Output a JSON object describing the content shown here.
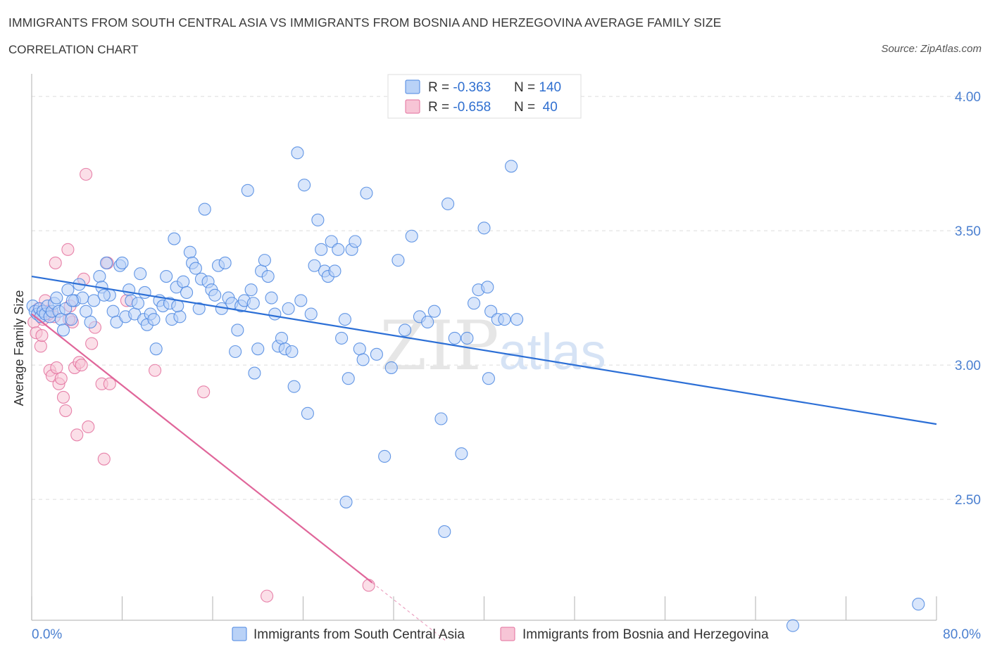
{
  "header": {
    "title": "IMMIGRANTS FROM SOUTH CENTRAL ASIA VS IMMIGRANTS FROM BOSNIA AND HERZEGOVINA AVERAGE FAMILY SIZE",
    "subtitle": "CORRELATION CHART",
    "source": "Source: ZipAtlas.com"
  },
  "watermark": "ZIPatlas",
  "colors": {
    "blue": "#4a86e0",
    "blue_fill": "#b9d2f7",
    "pink": "#e36f9c",
    "pink_fill": "#f7c5d6",
    "axis_text": "#4a7fd0"
  },
  "chart_data": {
    "type": "scatter",
    "title": "IMMIGRANTS FROM SOUTH CENTRAL ASIA VS IMMIGRANTS FROM BOSNIA AND HERZEGOVINA AVERAGE FAMILY SIZE",
    "xlabel": "",
    "ylabel": "Average Family Size",
    "xlim": [
      0,
      80
    ],
    "ylim": [
      2.05,
      4.05
    ],
    "x_tick_labels": [
      "0.0%",
      "80.0%"
    ],
    "y_ticks": [
      2.5,
      3.0,
      3.5,
      4.0
    ],
    "y_tick_labels": [
      "2.50",
      "3.00",
      "3.50",
      "4.00"
    ],
    "grid": true,
    "legend": [
      {
        "name": "Immigrants from South Central Asia",
        "r_label": "R = ",
        "r": "-0.363",
        "n_label": "N = ",
        "n": "140"
      },
      {
        "name": "Immigrants from Bosnia and Herzegovina",
        "r_label": "R = ",
        "r": "-0.658",
        "n_label": "N = ",
        "n": " 40"
      }
    ],
    "series": [
      {
        "name": "Immigrants from South Central Asia",
        "color": "blue",
        "trend": {
          "x0": 0,
          "y0": 3.33,
          "x1": 80,
          "y1": 2.78
        },
        "points": [
          [
            0.1,
            3.22
          ],
          [
            0.3,
            3.2
          ],
          [
            0.5,
            3.19
          ],
          [
            0.7,
            3.21
          ],
          [
            0.8,
            3.18
          ],
          [
            1.0,
            3.2
          ],
          [
            1.2,
            3.19
          ],
          [
            1.4,
            3.22
          ],
          [
            1.6,
            3.18
          ],
          [
            1.8,
            3.2
          ],
          [
            2.0,
            3.23
          ],
          [
            2.2,
            3.25
          ],
          [
            2.4,
            3.2
          ],
          [
            2.6,
            3.17
          ],
          [
            2.8,
            3.13
          ],
          [
            3.0,
            3.21
          ],
          [
            3.2,
            3.28
          ],
          [
            3.5,
            3.17
          ],
          [
            3.8,
            3.24
          ],
          [
            4.2,
            3.3
          ],
          [
            4.5,
            3.25
          ],
          [
            4.8,
            3.2
          ],
          [
            5.2,
            3.16
          ],
          [
            5.5,
            3.24
          ],
          [
            6.0,
            3.33
          ],
          [
            6.2,
            3.29
          ],
          [
            6.6,
            3.38
          ],
          [
            6.9,
            3.26
          ],
          [
            7.2,
            3.2
          ],
          [
            7.5,
            3.16
          ],
          [
            7.8,
            3.37
          ],
          [
            8.0,
            3.38
          ],
          [
            8.3,
            3.18
          ],
          [
            8.6,
            3.28
          ],
          [
            8.8,
            3.24
          ],
          [
            9.1,
            3.19
          ],
          [
            9.4,
            3.23
          ],
          [
            9.6,
            3.34
          ],
          [
            9.9,
            3.17
          ],
          [
            10.2,
            3.15
          ],
          [
            10.5,
            3.19
          ],
          [
            10.8,
            3.17
          ],
          [
            11.0,
            3.06
          ],
          [
            11.3,
            3.24
          ],
          [
            11.6,
            3.22
          ],
          [
            11.9,
            3.33
          ],
          [
            12.2,
            3.23
          ],
          [
            12.4,
            3.17
          ],
          [
            12.6,
            3.47
          ],
          [
            12.8,
            3.29
          ],
          [
            13.1,
            3.18
          ],
          [
            13.4,
            3.31
          ],
          [
            13.7,
            3.27
          ],
          [
            14.0,
            3.42
          ],
          [
            14.2,
            3.38
          ],
          [
            14.5,
            3.36
          ],
          [
            14.8,
            3.21
          ],
          [
            15.0,
            3.32
          ],
          [
            15.3,
            3.58
          ],
          [
            15.6,
            3.31
          ],
          [
            15.9,
            3.28
          ],
          [
            16.2,
            3.26
          ],
          [
            16.5,
            3.37
          ],
          [
            16.8,
            3.21
          ],
          [
            17.1,
            3.38
          ],
          [
            17.4,
            3.25
          ],
          [
            17.7,
            3.23
          ],
          [
            18.0,
            3.05
          ],
          [
            18.2,
            3.13
          ],
          [
            18.5,
            3.22
          ],
          [
            18.8,
            3.24
          ],
          [
            19.1,
            3.65
          ],
          [
            19.4,
            3.28
          ],
          [
            19.7,
            2.97
          ],
          [
            20.0,
            3.06
          ],
          [
            20.3,
            3.35
          ],
          [
            20.6,
            3.39
          ],
          [
            20.9,
            3.33
          ],
          [
            21.2,
            3.25
          ],
          [
            21.5,
            3.19
          ],
          [
            21.8,
            3.07
          ],
          [
            22.1,
            3.1
          ],
          [
            22.4,
            3.06
          ],
          [
            22.7,
            3.21
          ],
          [
            23.0,
            3.05
          ],
          [
            23.2,
            2.92
          ],
          [
            23.5,
            3.79
          ],
          [
            23.8,
            3.24
          ],
          [
            24.1,
            3.67
          ],
          [
            24.4,
            2.82
          ],
          [
            24.7,
            3.19
          ],
          [
            25.0,
            3.37
          ],
          [
            25.3,
            3.54
          ],
          [
            25.6,
            3.43
          ],
          [
            25.9,
            3.35
          ],
          [
            26.2,
            3.33
          ],
          [
            26.5,
            3.46
          ],
          [
            26.8,
            3.35
          ],
          [
            27.1,
            3.43
          ],
          [
            27.4,
            3.1
          ],
          [
            27.7,
            3.17
          ],
          [
            28.0,
            2.95
          ],
          [
            28.3,
            3.43
          ],
          [
            28.6,
            3.46
          ],
          [
            29.0,
            3.06
          ],
          [
            29.3,
            3.02
          ],
          [
            29.6,
            3.64
          ],
          [
            30.5,
            3.04
          ],
          [
            31.2,
            2.66
          ],
          [
            31.8,
            2.99
          ],
          [
            32.4,
            3.39
          ],
          [
            33.0,
            3.13
          ],
          [
            33.6,
            3.48
          ],
          [
            34.3,
            3.18
          ],
          [
            35.0,
            3.16
          ],
          [
            35.6,
            3.2
          ],
          [
            36.2,
            2.8
          ],
          [
            36.8,
            3.6
          ],
          [
            37.4,
            3.1
          ],
          [
            38.0,
            2.67
          ],
          [
            38.5,
            3.1
          ],
          [
            39.1,
            3.23
          ],
          [
            39.5,
            3.28
          ],
          [
            40.0,
            3.51
          ],
          [
            40.3,
            3.29
          ],
          [
            40.6,
            3.2
          ],
          [
            41.2,
            3.17
          ],
          [
            41.8,
            3.17
          ],
          [
            42.4,
            3.74
          ],
          [
            27.8,
            2.49
          ],
          [
            40.4,
            2.95
          ],
          [
            42.9,
            3.17
          ],
          [
            36.5,
            2.38
          ],
          [
            67.3,
            2.03
          ],
          [
            78.4,
            2.11
          ],
          [
            3.6,
            3.24
          ],
          [
            6.4,
            3.26
          ],
          [
            10.0,
            3.27
          ],
          [
            12.9,
            3.22
          ],
          [
            19.6,
            3.23
          ]
        ]
      },
      {
        "name": "Immigrants from Bosnia and Herzegovina",
        "color": "pink",
        "trend": {
          "x0": 0,
          "y0": 3.19,
          "x1": 30.1,
          "y1": 2.19,
          "dash_x1": 36.6
        },
        "points": [
          [
            0.2,
            3.16
          ],
          [
            0.4,
            3.12
          ],
          [
            0.6,
            3.21
          ],
          [
            0.8,
            3.07
          ],
          [
            1.0,
            3.17
          ],
          [
            1.2,
            3.24
          ],
          [
            1.4,
            3.2
          ],
          [
            1.6,
            2.98
          ],
          [
            1.8,
            2.96
          ],
          [
            2.0,
            3.18
          ],
          [
            2.2,
            2.99
          ],
          [
            2.4,
            2.93
          ],
          [
            2.6,
            2.95
          ],
          [
            2.8,
            2.88
          ],
          [
            3.0,
            2.83
          ],
          [
            3.2,
            3.43
          ],
          [
            3.4,
            3.22
          ],
          [
            3.6,
            3.16
          ],
          [
            3.8,
            2.99
          ],
          [
            4.0,
            2.74
          ],
          [
            4.2,
            3.01
          ],
          [
            4.4,
            3.0
          ],
          [
            4.6,
            3.32
          ],
          [
            4.8,
            3.71
          ],
          [
            5.0,
            2.77
          ],
          [
            5.6,
            3.14
          ],
          [
            6.2,
            2.93
          ],
          [
            6.4,
            2.65
          ],
          [
            6.7,
            3.38
          ],
          [
            6.9,
            2.93
          ],
          [
            8.4,
            3.24
          ],
          [
            10.9,
            2.98
          ],
          [
            15.2,
            2.9
          ],
          [
            20.8,
            2.14
          ],
          [
            29.8,
            2.18
          ],
          [
            2.1,
            3.38
          ],
          [
            0.9,
            3.11
          ],
          [
            1.5,
            3.19
          ],
          [
            3.3,
            3.17
          ],
          [
            5.3,
            3.08
          ]
        ]
      }
    ]
  }
}
